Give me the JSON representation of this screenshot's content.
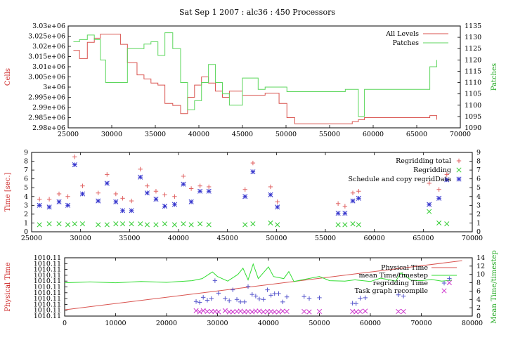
{
  "title": "Sat Sep 1 2007 : alc36 : 450 Processors",
  "chart_data": [
    {
      "type": "line",
      "ylabel_left": "Cells",
      "ylabel_right": "Patches",
      "xlim": [
        25000,
        70000
      ],
      "ylim_left": [
        2980000,
        3030000
      ],
      "ylim_right": [
        1090,
        1135
      ],
      "x_ticks": [
        25000,
        30000,
        35000,
        40000,
        45000,
        50000,
        55000,
        60000,
        65000,
        70000
      ],
      "y_ticks_left": [
        "2.98e+06",
        "2.985e+06",
        "2.99e+06",
        "2.995e+06",
        "3e+06",
        "3.005e+06",
        "3.01e+06",
        "3.015e+06",
        "3.02e+06",
        "3.025e+06",
        "3.03e+06"
      ],
      "y_ticks_left_values": [
        2980000,
        2985000,
        2990000,
        2995000,
        3000000,
        3005000,
        3010000,
        3015000,
        3020000,
        3025000,
        3030000
      ],
      "y_ticks_right": [
        1090,
        1095,
        1100,
        1105,
        1110,
        1115,
        1120,
        1125,
        1130,
        1135
      ],
      "legend_position": "top-right",
      "series": [
        {
          "name": "All Levels",
          "color": "#d9534f",
          "axis": "left",
          "x": [
            25600,
            26300,
            27200,
            28000,
            28700,
            29300,
            30200,
            31000,
            31800,
            32900,
            33700,
            34500,
            35300,
            36100,
            37000,
            37900,
            38700,
            39500,
            40300,
            41100,
            41900,
            42700,
            43500,
            45000,
            46800,
            47600,
            49200,
            50100,
            51000,
            53000,
            56000,
            56800,
            57600,
            58300,
            59000,
            62000,
            64000,
            65500,
            66500,
            67300
          ],
          "y": [
            3018000,
            3014000,
            3022000,
            3024000,
            3026000,
            3026000,
            3026000,
            3021000,
            3012000,
            3006000,
            3004000,
            3002000,
            3001000,
            2992000,
            2991000,
            2987000,
            2995000,
            3001000,
            3005000,
            3002000,
            2998000,
            2995000,
            2998000,
            2996000,
            2996000,
            2997000,
            2992000,
            2985000,
            2982000,
            2982000,
            2982000,
            2982000,
            2983000,
            2984000,
            2985000,
            2985000,
            2985000,
            2985000,
            2986000,
            2984000
          ]
        },
        {
          "name": "Patches",
          "color": "#5cd65c",
          "axis": "right",
          "x": [
            25600,
            26300,
            27200,
            28000,
            28700,
            29300,
            30200,
            31000,
            31800,
            32900,
            33700,
            34500,
            35300,
            36100,
            37000,
            37900,
            38700,
            39500,
            40300,
            41100,
            41900,
            42700,
            43500,
            45000,
            46800,
            47600,
            49200,
            50100,
            51000,
            53000,
            56000,
            56800,
            57600,
            58300,
            59000,
            62000,
            64000,
            65500,
            66500,
            67300
          ],
          "y": [
            1128,
            1129,
            1131,
            1129,
            1120,
            1110,
            1110,
            1110,
            1125,
            1125,
            1127,
            1128,
            1122,
            1132,
            1125,
            1110,
            1098,
            1102,
            1110,
            1118,
            1110,
            1105,
            1100,
            1112,
            1107,
            1108,
            1108,
            1106,
            1106,
            1106,
            1106,
            1107,
            1107,
            1095,
            1107,
            1107,
            1107,
            1107,
            1117,
            1120
          ]
        }
      ]
    },
    {
      "type": "scatter",
      "ylabel_left": "Time [sec.]",
      "xlim": [
        25000,
        70000
      ],
      "ylim": [
        0,
        9
      ],
      "x_ticks": [
        25000,
        30000,
        35000,
        40000,
        45000,
        50000,
        55000,
        60000,
        65000,
        70000
      ],
      "y_ticks": [
        0,
        1,
        2,
        3,
        4,
        5,
        6,
        7,
        8,
        9
      ],
      "legend_position": "top-right",
      "series": [
        {
          "name": "Regridding total",
          "color": "#e06060",
          "marker": "+",
          "x": [
            25800,
            26800,
            27800,
            28700,
            29400,
            30200,
            31800,
            32700,
            33600,
            34300,
            35200,
            36100,
            36800,
            37700,
            38600,
            39600,
            40500,
            41300,
            42200,
            43100,
            46800,
            47600,
            49400,
            50100,
            56300,
            57000,
            57800,
            58400,
            65600,
            66600,
            67400
          ],
          "y": [
            3.7,
            3.7,
            4.3,
            4.0,
            8.5,
            5.2,
            4.4,
            6.5,
            4.3,
            3.8,
            3.5,
            7.1,
            5.2,
            4.6,
            4.2,
            4.0,
            6.3,
            4.9,
            5.2,
            5.1,
            4.8,
            7.8,
            5.1,
            3.4,
            3.2,
            2.9,
            4.4,
            4.6,
            5.5,
            4.8,
            6.5
          ]
        },
        {
          "name": "Regridding",
          "color": "#33cc33",
          "marker": "x",
          "x": [
            25800,
            26800,
            27800,
            28700,
            29400,
            30200,
            31800,
            32700,
            33600,
            34300,
            35200,
            36100,
            36800,
            37700,
            38600,
            39600,
            40500,
            41300,
            42200,
            43100,
            46800,
            47600,
            49400,
            50100,
            56300,
            57000,
            57800,
            58400,
            65600,
            66600,
            67400
          ],
          "y": [
            0.8,
            0.9,
            0.9,
            0.8,
            0.9,
            0.9,
            0.8,
            0.8,
            0.9,
            0.9,
            0.9,
            0.9,
            0.8,
            0.8,
            0.9,
            0.8,
            0.9,
            0.8,
            0.9,
            0.8,
            0.8,
            0.9,
            1.0,
            0.8,
            0.8,
            0.8,
            0.9,
            0.8,
            2.3,
            1.0,
            0.9
          ]
        },
        {
          "name": "Schedule and copy regridData",
          "color": "#3333cc",
          "marker": "*",
          "x": [
            25800,
            26800,
            27800,
            28700,
            29400,
            30200,
            31800,
            32700,
            33600,
            34300,
            35200,
            36100,
            36800,
            37700,
            38600,
            39600,
            40500,
            41300,
            42200,
            43100,
            46800,
            47600,
            49400,
            50100,
            56300,
            57000,
            57800,
            58400,
            65600,
            66600,
            67400
          ],
          "y": [
            3.0,
            2.8,
            3.4,
            3.0,
            7.6,
            4.3,
            3.5,
            5.5,
            3.4,
            2.4,
            2.4,
            6.2,
            4.4,
            3.7,
            2.9,
            3.1,
            5.4,
            3.4,
            4.6,
            4.6,
            4.0,
            6.8,
            4.2,
            2.8,
            2.1,
            2.1,
            3.5,
            3.8,
            3.1,
            3.8,
            5.9
          ]
        }
      ]
    },
    {
      "type": "line",
      "ylabel_left": "Physical Time",
      "ylabel_right": "Mean Time/timestep",
      "xlim": [
        0,
        80000
      ],
      "ylim_right": [
        0,
        14
      ],
      "x_ticks": [
        0,
        10000,
        20000,
        30000,
        40000,
        50000,
        60000,
        70000,
        80000
      ],
      "y_ticks_left": [
        "1010.11",
        "1010.11",
        "1010.11",
        "1010.11",
        "1010.11",
        "1010.11",
        "1010.11",
        "1010.11",
        "1010.11",
        "1010.11",
        "1010.11"
      ],
      "y_ticks_right": [
        0,
        2,
        4,
        6,
        8,
        10,
        12,
        14
      ],
      "legend_position": "top-right",
      "series": [
        {
          "name": "Physical Time",
          "color": "#d9534f",
          "axis": "right",
          "x": [
            0,
            78000
          ],
          "y": [
            1.5,
            13.3
          ]
        },
        {
          "name": "mean Time/timestep",
          "color": "#33dd33",
          "axis": "right",
          "x": [
            0,
            5000,
            10000,
            15000,
            20000,
            25000,
            27000,
            29000,
            30000,
            32000,
            34000,
            35000,
            36000,
            37000,
            38000,
            40000,
            41000,
            43000,
            44000,
            45000,
            47000,
            50000,
            52000,
            55000,
            57000,
            60000,
            62000,
            65000,
            66000,
            68000,
            70000,
            72000,
            74000,
            76000
          ],
          "y": [
            8,
            8.2,
            8,
            8.3,
            8.1,
            8.5,
            9,
            10.6,
            9.5,
            8.4,
            10,
            11.5,
            8.7,
            12.5,
            9,
            11.8,
            9.5,
            9,
            10.7,
            8.3,
            8.8,
            9.5,
            8.5,
            8.4,
            8.7,
            8.3,
            9.1,
            8.4,
            10.4,
            8.6,
            8.5,
            8.8,
            8.4,
            8.6
          ]
        },
        {
          "name": "regridding Time",
          "color": "#5555cc",
          "marker": "+",
          "axis": "right",
          "x": [
            25800,
            26500,
            27200,
            28000,
            28800,
            29500,
            30200,
            31500,
            32300,
            33000,
            33800,
            34500,
            35300,
            36000,
            36800,
            37500,
            38200,
            39000,
            39800,
            40500,
            41200,
            42000,
            42800,
            43600,
            47000,
            48000,
            50000,
            56500,
            57200,
            58000,
            59000,
            65500,
            66500,
            75500
          ],
          "y": [
            3.5,
            3.3,
            4.5,
            3.8,
            4.2,
            8.5,
            5.5,
            4.2,
            3.7,
            6.3,
            4.0,
            3.4,
            3.4,
            7.1,
            5.2,
            4.8,
            4.1,
            4.0,
            6.3,
            5.0,
            5.4,
            5.4,
            3.4,
            4.6,
            4.7,
            4.2,
            4.4,
            3.1,
            3.0,
            4.3,
            4.4,
            5.1,
            4.8,
            9.0
          ]
        },
        {
          "name": "Task graph recompile",
          "color": "#cc33cc",
          "marker": "x",
          "axis": "right",
          "x": [
            25800,
            26500,
            27200,
            28000,
            28800,
            29500,
            30200,
            31500,
            32300,
            33000,
            33800,
            34500,
            35300,
            36000,
            36800,
            37500,
            38200,
            39000,
            39800,
            40500,
            41200,
            42000,
            42800,
            43600,
            47000,
            48000,
            50000,
            56500,
            57200,
            58000,
            59000,
            65500,
            66500,
            75500
          ],
          "y": [
            1.3,
            1.0,
            1.3,
            1.1,
            1.1,
            1.1,
            1.0,
            1.3,
            1.0,
            1.0,
            1.1,
            1.2,
            1.0,
            1.1,
            1.0,
            1.2,
            1.2,
            1.0,
            1.1,
            1.1,
            1.0,
            1.0,
            1.2,
            1.1,
            1.1,
            1.0,
            1.1,
            1.1,
            1.0,
            1.1,
            1.2,
            1.1,
            1.1,
            8.0
          ]
        }
      ]
    }
  ]
}
